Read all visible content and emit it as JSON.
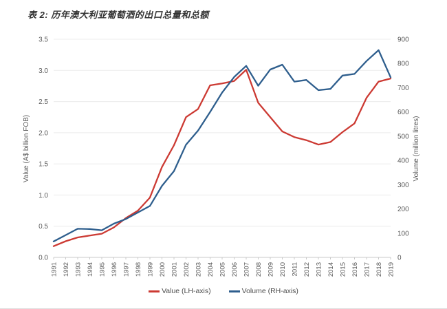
{
  "figure": {
    "title": "表 2: 历年澳大利亚葡萄酒的出口总量和总额"
  },
  "chart_data": {
    "type": "line",
    "title": "表 2: 历年澳大利亚葡萄酒的出口总量和总额",
    "x": [
      "1991",
      "1992",
      "1993",
      "1994",
      "1995",
      "1996",
      "1997",
      "1998",
      "1999",
      "2000",
      "2001",
      "2002",
      "2003",
      "2004",
      "2005",
      "2006",
      "2007",
      "2008",
      "2009",
      "2010",
      "2011",
      "2012",
      "2013",
      "2014",
      "2015",
      "2016",
      "2017",
      "2018",
      "2019"
    ],
    "series": [
      {
        "name": "Value (LH-axis)",
        "axis": "left",
        "color": "#cc3a33",
        "values": [
          0.18,
          0.26,
          0.32,
          0.35,
          0.38,
          0.48,
          0.63,
          0.75,
          0.96,
          1.45,
          1.8,
          2.25,
          2.38,
          2.76,
          2.79,
          2.83,
          3.01,
          2.48,
          2.25,
          2.02,
          1.93,
          1.88,
          1.81,
          1.85,
          2.01,
          2.15,
          2.56,
          2.82,
          2.87
        ]
      },
      {
        "name": "Volume (RH-axis)",
        "axis": "right",
        "color": "#2e5e8d",
        "values": [
          66,
          92,
          118,
          117,
          112,
          139,
          158,
          185,
          212,
          295,
          356,
          465,
          523,
          600,
          680,
          744,
          790,
          708,
          775,
          795,
          725,
          732,
          690,
          695,
          750,
          757,
          810,
          855,
          743
        ]
      }
    ],
    "left_axis": {
      "label": "Value (A$ billion FOB)",
      "min": 0,
      "max": 3.5,
      "step": 0.5,
      "ticks": [
        "0.0",
        "0.5",
        "1.0",
        "1.5",
        "2.0",
        "2.5",
        "3.0",
        "3.5"
      ]
    },
    "right_axis": {
      "label": "Volume (million litres)",
      "min": 0,
      "max": 900,
      "step": 100,
      "ticks": [
        "0",
        "100",
        "200",
        "300",
        "400",
        "500",
        "600",
        "700",
        "800",
        "900"
      ]
    },
    "grid": "horizontal",
    "legend_position": "bottom"
  },
  "colors": {
    "gridline": "#ececec",
    "baseline": "#c8c8c8",
    "tick_mark": "#c8c8c8",
    "axis_text": "#595959"
  }
}
